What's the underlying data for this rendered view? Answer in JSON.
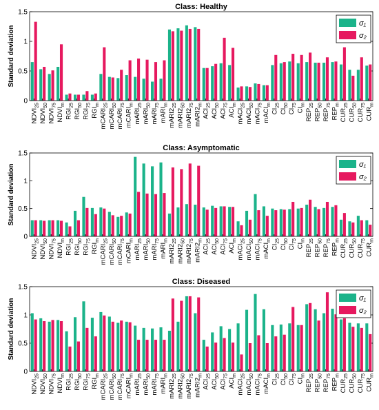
{
  "colors": {
    "sigma1": "#1bb38a",
    "sigma2": "#e6195f"
  },
  "legend": {
    "sigma1": "σ₁",
    "sigma2": "σ₂"
  },
  "chart_data": [
    {
      "type": "bar",
      "title": "Class: Healthy",
      "xlabel": "",
      "ylabel": "Standard deviation",
      "ylim": [
        0,
        1.5
      ],
      "yticks": [
        "0",
        "0.5",
        "1",
        "1.5"
      ],
      "legend_position": "top-right",
      "categories": [
        "NDVI25",
        "NDVI50",
        "NDVI75",
        "NDVIm",
        "RGI25",
        "RGI50",
        "RGI75",
        "RGIm",
        "mCARI25",
        "mCARI50",
        "mCARI75",
        "mCARIm",
        "mARI25",
        "mARI50",
        "mARI75",
        "mARIm",
        "mARI225",
        "mARI250",
        "mARI275",
        "mARI2m",
        "ACI25",
        "ACI50",
        "ACI75",
        "ACIm",
        "mACI25",
        "mACI50",
        "mACI75",
        "mACIm",
        "CI25",
        "CI50",
        "CI75",
        "CIm",
        "REP25",
        "REP50",
        "REP75",
        "REPm",
        "CUR25",
        "CUR50",
        "CUR75",
        "CURm"
      ],
      "series": [
        {
          "name": "σ₁",
          "values": [
            0.65,
            0.53,
            0.45,
            0.57,
            0.1,
            0.1,
            0.1,
            0.1,
            0.45,
            0.4,
            0.38,
            0.43,
            0.4,
            0.37,
            0.32,
            0.37,
            1.2,
            1.22,
            1.27,
            1.24,
            0.55,
            0.58,
            0.63,
            0.6,
            0.22,
            0.24,
            0.29,
            0.26,
            0.6,
            0.63,
            0.66,
            0.63,
            0.65,
            0.64,
            0.64,
            0.65,
            0.61,
            0.52,
            0.52,
            0.59
          ]
        },
        {
          "name": "σ₂",
          "values": [
            1.33,
            0.57,
            0.51,
            0.95,
            0.12,
            0.1,
            0.16,
            0.12,
            0.9,
            0.39,
            0.52,
            0.68,
            0.71,
            0.69,
            0.65,
            0.68,
            1.17,
            1.18,
            1.21,
            1.21,
            0.55,
            0.62,
            1.06,
            0.89,
            0.24,
            0.23,
            0.28,
            0.26,
            0.77,
            0.65,
            0.79,
            0.77,
            0.81,
            0.64,
            0.73,
            0.66,
            0.9,
            0.42,
            0.73,
            0.61
          ]
        }
      ]
    },
    {
      "type": "bar",
      "title": "Class: Asymptomatic",
      "xlabel": "",
      "ylabel": "Standard deviation",
      "ylim": [
        0,
        1.5
      ],
      "yticks": [
        "0",
        "0.5",
        "1",
        "1.5"
      ],
      "legend_position": "top-right",
      "categories": [
        "NDVI25",
        "NDVI50",
        "NDVI75",
        "NDVIm",
        "RGI25",
        "RGI50",
        "RGI75",
        "RGIm",
        "mCARI25",
        "mCARI50",
        "mCARI75",
        "mCARIm",
        "mARI25",
        "mARI50",
        "mARI75",
        "mARIm",
        "mARI225",
        "mARI250",
        "mARI275",
        "mARI2m",
        "ACI25",
        "ACI50",
        "ACI75",
        "ACIm",
        "mACI25",
        "mACI50",
        "mACI75",
        "mACIm",
        "CI25",
        "CI50",
        "CI75",
        "CIm",
        "REP25",
        "REP50",
        "REP75",
        "REPm",
        "CUR25",
        "CUR50",
        "CUR75",
        "CURm"
      ],
      "series": [
        {
          "name": "σ₁",
          "values": [
            0.29,
            0.29,
            0.29,
            0.29,
            0.25,
            0.46,
            0.71,
            0.51,
            0.52,
            0.44,
            0.35,
            0.43,
            1.43,
            1.31,
            1.26,
            1.33,
            0.41,
            0.52,
            0.58,
            0.57,
            0.52,
            0.55,
            0.54,
            0.53,
            0.27,
            0.46,
            0.76,
            0.54,
            0.5,
            0.49,
            0.49,
            0.5,
            0.57,
            0.53,
            0.51,
            0.53,
            0.3,
            0.27,
            0.37,
            0.29
          ]
        },
        {
          "name": "σ₂",
          "values": [
            0.29,
            0.28,
            0.29,
            0.28,
            0.18,
            0.29,
            0.51,
            0.4,
            0.5,
            0.38,
            0.37,
            0.41,
            0.8,
            0.77,
            0.76,
            0.78,
            1.24,
            1.21,
            1.31,
            1.27,
            0.48,
            0.51,
            0.54,
            0.53,
            0.2,
            0.3,
            0.47,
            0.37,
            0.47,
            0.48,
            0.62,
            0.51,
            0.66,
            0.49,
            0.62,
            0.56,
            0.42,
            0.25,
            0.29,
            0.21
          ]
        }
      ]
    },
    {
      "type": "bar",
      "title": "Class: Diseased",
      "xlabel": "",
      "ylabel": "Standard deviation",
      "ylim": [
        0,
        1.5
      ],
      "yticks": [
        "0",
        "0.5",
        "1",
        "1.5"
      ],
      "legend_position": "top-right",
      "categories": [
        "NDVI25",
        "NDVI50",
        "NDVI75",
        "NDVIm",
        "RGI25",
        "RGI50",
        "RGI75",
        "RGIm",
        "mCARI25",
        "mCARI50",
        "mCARI75",
        "mCARIm",
        "mARI25",
        "mARI50",
        "mARI75",
        "mARIm",
        "mARI225",
        "mARI250",
        "mARI275",
        "mARI2m",
        "ACI25",
        "ACI50",
        "ACI75",
        "ACIm",
        "mACI25",
        "mACI50",
        "mACI75",
        "mACIm",
        "CI25",
        "CI50",
        "CI75",
        "CIm",
        "REP25",
        "REP50",
        "REP75",
        "REPm",
        "CUR25",
        "CUR50",
        "CUR75",
        "CURm"
      ],
      "series": [
        {
          "name": "σ₁",
          "values": [
            1.03,
            0.94,
            0.88,
            0.91,
            0.71,
            0.96,
            1.24,
            0.95,
            1.05,
            0.97,
            0.86,
            0.88,
            0.81,
            0.77,
            0.76,
            0.78,
            0.72,
            0.88,
            1.33,
            1.03,
            0.56,
            0.69,
            0.8,
            0.75,
            0.85,
            1.09,
            1.37,
            1.1,
            0.82,
            0.83,
            0.85,
            0.82,
            1.19,
            1.1,
            1.03,
            1.11,
            0.92,
            0.86,
            0.85,
            0.85
          ]
        },
        {
          "name": "σ₂",
          "values": [
            0.92,
            0.89,
            0.91,
            0.89,
            0.44,
            0.53,
            0.77,
            0.62,
            0.99,
            0.88,
            0.9,
            0.87,
            0.56,
            0.56,
            0.56,
            0.56,
            1.29,
            1.25,
            1.33,
            1.31,
            0.44,
            0.51,
            0.59,
            0.51,
            0.3,
            0.5,
            0.64,
            0.5,
            0.62,
            0.65,
            1.14,
            0.82,
            1.21,
            0.9,
            1.4,
            1.01,
            0.94,
            0.79,
            0.77,
            0.66
          ]
        }
      ]
    }
  ]
}
